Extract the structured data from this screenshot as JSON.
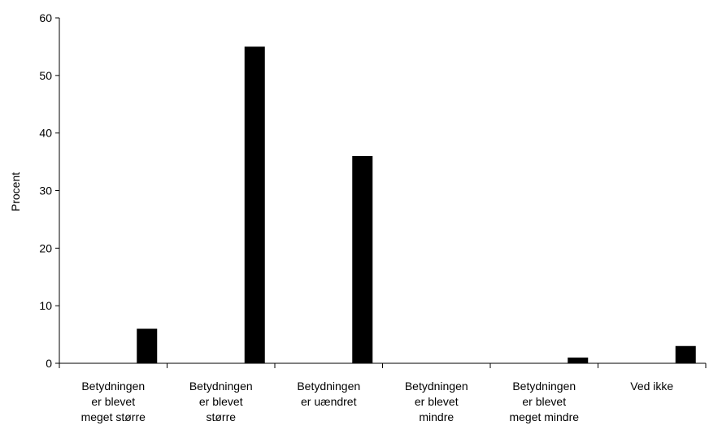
{
  "chart_data": {
    "type": "bar",
    "categories": [
      [
        "Betydningen",
        "er blevet",
        "meget større"
      ],
      [
        "Betydningen",
        "er blevet",
        "større"
      ],
      [
        "Betydningen",
        "er uændret"
      ],
      [
        "Betydningen",
        "er blevet",
        "mindre"
      ],
      [
        "Betydningen",
        "er blevet",
        "meget mindre"
      ],
      [
        "Ved ikke"
      ]
    ],
    "values": [
      6,
      55,
      36,
      0,
      1,
      3
    ],
    "ylabel": "Procent",
    "ylim": [
      0,
      60
    ],
    "yticks": [
      0,
      10,
      20,
      30,
      40,
      50,
      60
    ],
    "bar_color": "#000000",
    "grid": false,
    "legend": "none"
  }
}
